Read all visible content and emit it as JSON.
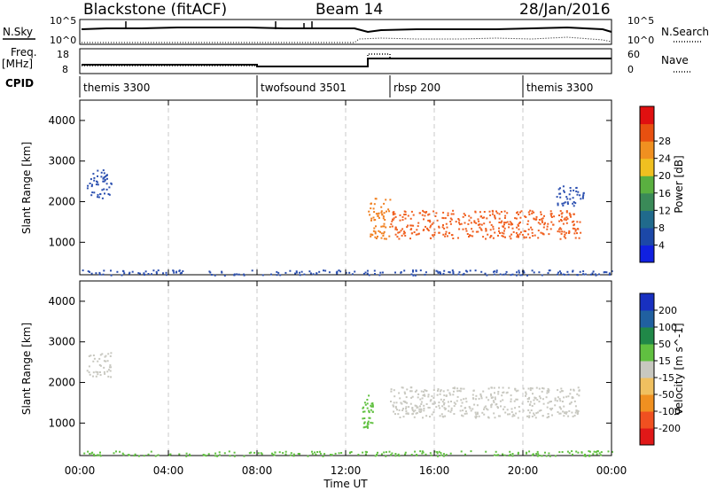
{
  "header": {
    "title": "Blackstone (fitACF)",
    "beam": "Beam 14",
    "date": "28/Jan/2016"
  },
  "top_panels": {
    "nsky_label": "N.Sky",
    "nsearch_label": "N.Search",
    "nsky_ticks": [
      "10^5",
      "10^0"
    ],
    "nsky_ticks_right": [
      "10^5",
      "10^0"
    ],
    "freq_label": "Freq.",
    "freq_unit": "[MHz]",
    "freq_ticks": [
      "18",
      "8"
    ],
    "nave_label": "Nave",
    "nave_ticks": [
      "60",
      "0"
    ],
    "cpid_label": "CPID",
    "cpid_segments": [
      {
        "name": "themis 3300",
        "start": 0,
        "end": 8
      },
      {
        "name": "twofsound 3501",
        "start": 8,
        "end": 14
      },
      {
        "name": "rbsp 200",
        "start": 14,
        "end": 20
      },
      {
        "name": "themis 3300",
        "start": 20,
        "end": 24
      }
    ]
  },
  "axes": {
    "xlabel": "Time UT",
    "x_ticks": [
      "00:00",
      "04:00",
      "08:00",
      "12:00",
      "16:00",
      "20:00",
      "00:00"
    ],
    "ylabel": "Slant Range [km]",
    "y_ticks": [
      "1000",
      "2000",
      "3000",
      "4000"
    ]
  },
  "chart_data": [
    {
      "type": "heatmap",
      "panel": "power",
      "x_range": [
        0,
        24
      ],
      "ylim": [
        200,
        4500
      ],
      "x_ticks": [
        0,
        4,
        8,
        12,
        16,
        20,
        24
      ],
      "y_ticks": [
        1000,
        2000,
        3000,
        4000
      ],
      "colorbar": {
        "label": "Power [dB]",
        "tick_labels": [
          "4",
          "8",
          "12",
          "16",
          "20",
          "24",
          "28"
        ],
        "colors": [
          "#1020e0",
          "#1c48a8",
          "#206a8c",
          "#3a8a58",
          "#5ab040",
          "#f0c020",
          "#f09020",
          "#e85010",
          "#e01010"
        ]
      },
      "features": [
        {
          "x": [
            0.3,
            1.4
          ],
          "y": [
            2100,
            2800
          ],
          "color": "#2c50b0"
        },
        {
          "x": [
            13.0,
            14.0
          ],
          "y": [
            1100,
            2100
          ],
          "color": "#f08020"
        },
        {
          "x": [
            14.0,
            22.6
          ],
          "y": [
            1100,
            1800
          ],
          "color": "#f06020"
        },
        {
          "x": [
            21.5,
            22.8
          ],
          "y": [
            1900,
            2400
          ],
          "color": "#2c50b0"
        },
        {
          "x": [
            0,
            24
          ],
          "y": [
            200,
            330
          ],
          "color": "#2c50b0"
        }
      ]
    },
    {
      "type": "heatmap",
      "panel": "velocity",
      "x_range": [
        0,
        24
      ],
      "ylim": [
        200,
        4500
      ],
      "x_ticks": [
        0,
        4,
        8,
        12,
        16,
        20,
        24
      ],
      "y_ticks": [
        1000,
        2000,
        3000,
        4000
      ],
      "colorbar": {
        "label": "Velocity [m s^-1]",
        "tick_labels": [
          "200",
          "100",
          "50",
          "15",
          "-15",
          "-50",
          "-100",
          "-200"
        ],
        "colors": [
          "#1830c0",
          "#2060a0",
          "#208848",
          "#60c040",
          "#c8c8c0",
          "#f0c060",
          "#f09020",
          "#f05020",
          "#e01818"
        ]
      },
      "features": [
        {
          "x": [
            14.0,
            22.6
          ],
          "y": [
            1150,
            1900
          ],
          "color": "#c8c8c0"
        },
        {
          "x": [
            0.3,
            1.4
          ],
          "y": [
            2150,
            2750
          ],
          "color": "#c8c8c0"
        },
        {
          "x": [
            12.7,
            13.2
          ],
          "y": [
            900,
            1700
          ],
          "color": "#60c040"
        },
        {
          "x": [
            0,
            24
          ],
          "y": [
            200,
            330
          ],
          "color": "#60c040"
        }
      ]
    }
  ]
}
